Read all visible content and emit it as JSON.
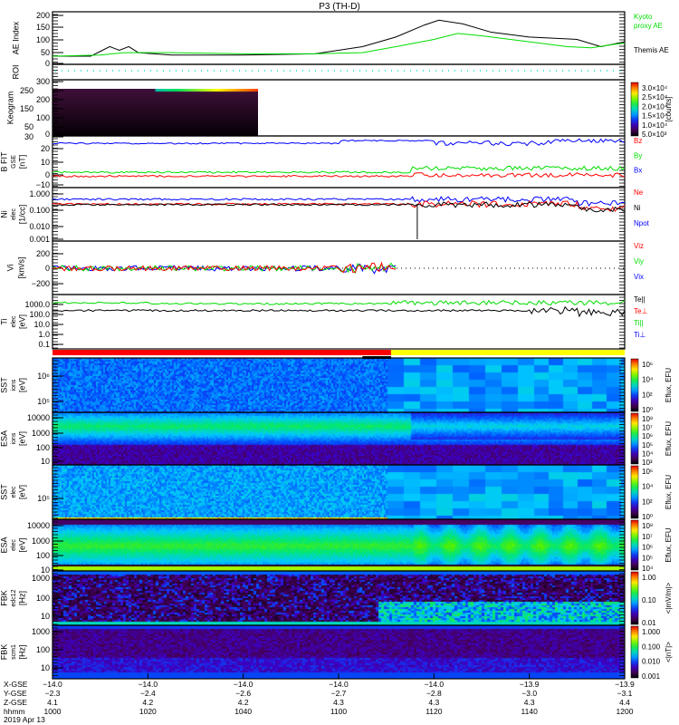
{
  "title": "P3 (TH-D)",
  "colors": {
    "red": "#ff0000",
    "green": "#00dd00",
    "blue": "#0000ff",
    "black": "#000000",
    "cyan": "#00e0c0",
    "yellow": "#ffff00"
  },
  "panels": [
    {
      "id": "ae",
      "label": [
        "AE Index"
      ],
      "ticks": [
        "200",
        "150",
        "100",
        "50",
        "0"
      ],
      "legend": [
        {
          "text": "Kyoto",
          "color": "#00dd00"
        },
        {
          "text": "proxy AE",
          "color": "#00dd00"
        },
        {
          "text": "Themis AE",
          "color": "#000000"
        }
      ]
    },
    {
      "id": "roi",
      "label": [
        "ROI"
      ],
      "ticks": [],
      "legend": []
    },
    {
      "id": "keogram",
      "label": [
        "Keogram"
      ],
      "ticks": [
        "300",
        "250",
        "200",
        "150",
        "100",
        "50",
        "0"
      ],
      "colorbar": [
        "3.0×10⁴",
        "2.5×10⁴",
        "2.0×10⁴",
        "1.5×10⁴",
        "1.0×10⁴",
        "5.0×10³"
      ],
      "cbar_unit": "[counts]"
    },
    {
      "id": "bfit",
      "label": [
        "B FIT",
        "GSE",
        "[nT]"
      ],
      "ticks": [
        "30",
        "20",
        "10",
        "0",
        "−10"
      ],
      "legend": [
        {
          "text": "Bz",
          "color": "#ff0000"
        },
        {
          "text": "By",
          "color": "#00dd00"
        },
        {
          "text": "Bx",
          "color": "#0000ff"
        }
      ]
    },
    {
      "id": "ni",
      "label": [
        "Ni",
        "elec",
        "[1/cc]"
      ],
      "ticks": [
        "1.000",
        "0.100",
        "0.010",
        "0.001"
      ],
      "legend": [
        {
          "text": "Ne",
          "color": "#ff0000"
        },
        {
          "text": "Ni",
          "color": "#000000"
        },
        {
          "text": "Npot",
          "color": "#0000ff"
        }
      ]
    },
    {
      "id": "vi",
      "label": [
        "Vi",
        "[km/s]"
      ],
      "ticks": [
        "200",
        "0",
        "−200"
      ],
      "legend": [
        {
          "text": "Viz",
          "color": "#ff0000"
        },
        {
          "text": "Viy",
          "color": "#00dd00"
        },
        {
          "text": "Vix",
          "color": "#0000ff"
        }
      ]
    },
    {
      "id": "ti",
      "label": [
        "Ti",
        "elec",
        "[eV]"
      ],
      "ticks": [
        "1000.0",
        "100.0",
        "10.0",
        "1.0",
        "0.1"
      ],
      "legend": [
        {
          "text": "Te||",
          "color": "#000000"
        },
        {
          "text": "Te⊥",
          "color": "#ff0000"
        },
        {
          "text": "Ti||",
          "color": "#00dd00"
        },
        {
          "text": "Ti⊥",
          "color": "#0000ff"
        }
      ]
    },
    {
      "id": "sst_i",
      "label": [
        "SST",
        "ions",
        "[eV]"
      ],
      "ticks": [
        "10⁶",
        "10⁵"
      ],
      "colorbar": [
        "10⁶",
        "10⁴",
        "10²",
        "10⁰"
      ],
      "cbar_unit": "Eflux, EFU"
    },
    {
      "id": "esa_i",
      "label": [
        "ESA",
        "ions",
        "[eV]"
      ],
      "ticks": [
        "10000",
        "1000",
        "100",
        "10"
      ],
      "colorbar": [
        "10⁸",
        "10⁷",
        "10⁶",
        "10⁵",
        "10⁴",
        "10³"
      ],
      "cbar_unit": "Eflux, EFU"
    },
    {
      "id": "sst_e",
      "label": [
        "SST",
        "elec",
        "[eV]"
      ],
      "ticks": [
        "10⁵"
      ],
      "colorbar": [
        "10⁶",
        "10⁴",
        "10²",
        "10⁰"
      ],
      "cbar_unit": "Eflux, EFU"
    },
    {
      "id": "esa_e",
      "label": [
        "ESA",
        "elec",
        "[eV]"
      ],
      "ticks": [
        "10000",
        "1000",
        "100",
        "10"
      ],
      "colorbar": [
        "10⁸",
        "10⁷",
        "10⁶",
        "10⁵",
        "10⁴"
      ],
      "cbar_unit": "Eflux, EFU"
    },
    {
      "id": "fbk_e",
      "label": [
        "FBK",
        "edc12",
        "[Hz]"
      ],
      "ticks": [
        "1000",
        "100",
        "10"
      ],
      "colorbar": [
        "1.00",
        "0.10",
        "0.01"
      ],
      "cbar_unit": "<|mV/m|>"
    },
    {
      "id": "fbk_b",
      "label": [
        "FBK",
        "scm1",
        "[Hz]"
      ],
      "ticks": [
        "1000",
        "100",
        "10"
      ],
      "colorbar": [
        "1.000",
        "0.100",
        "0.010",
        "0.001"
      ],
      "cbar_unit": "<|nT|>"
    }
  ],
  "xaxis": {
    "row_labels": [
      "X-GSE",
      "Y-GSE",
      "Z-GSE",
      "hhmm"
    ],
    "date": "2019 Apr 13",
    "columns": [
      [
        "−14.0",
        "−2.3",
        "4.1",
        "1000"
      ],
      [
        "−14.0",
        "−2.4",
        "4.2",
        "1020"
      ],
      [
        "−14.0",
        "−2.6",
        "4.2",
        "1040"
      ],
      [
        "−14.0",
        "−2.7",
        "4.3",
        "1100"
      ],
      [
        "−14.0",
        "−2.8",
        "4.3",
        "1120"
      ],
      [
        "−13.9",
        "−3.0",
        "4.3",
        "1140"
      ],
      [
        "−13.9",
        "−3.1",
        "4.4",
        "1200"
      ]
    ]
  },
  "chart_data": {
    "type": "line",
    "title": "P3 (TH-D)",
    "x_unit": "minutes after 10:00 UT",
    "xlim": [
      0,
      120
    ],
    "ae": {
      "ylim": [
        0,
        210
      ],
      "series": [
        {
          "name": "Themis AE",
          "x": [
            0,
            8,
            10,
            12,
            14,
            16,
            18,
            25,
            40,
            55,
            65,
            72,
            78,
            81,
            86,
            92,
            100,
            110,
            115,
            120
          ],
          "y": [
            30,
            30,
            50,
            70,
            55,
            70,
            45,
            35,
            35,
            40,
            70,
            110,
            160,
            180,
            165,
            130,
            110,
            100,
            70,
            90
          ]
        },
        {
          "name": "Kyoto proxy AE",
          "x": [
            0,
            10,
            15,
            25,
            40,
            55,
            65,
            72,
            80,
            85,
            90,
            100,
            108,
            113,
            118,
            120
          ],
          "y": [
            30,
            35,
            45,
            45,
            40,
            40,
            45,
            70,
            100,
            125,
            115,
            90,
            70,
            65,
            80,
            85
          ]
        }
      ]
    },
    "bfit": {
      "ylim": [
        -12,
        32
      ],
      "series": [
        {
          "name": "Bz",
          "level": -1
        },
        {
          "name": "By",
          "level": 2
        },
        {
          "name": "Bx",
          "level": 24
        }
      ]
    },
    "ni": {
      "ylim_log": [
        -3.2,
        0.2
      ],
      "series": [
        {
          "name": "Npot",
          "level": 0.4
        },
        {
          "name": "Ne",
          "level": 0.22
        },
        {
          "name": "Ni",
          "level": 0.2
        }
      ]
    },
    "ti": {
      "ylim_log": [
        -1.5,
        3.4
      ],
      "series": [
        {
          "name": "Ti||",
          "level": 1500
        },
        {
          "name": "Te||",
          "level": 250
        }
      ]
    },
    "mode_bar": {
      "slow_survey_end_min": 71
    }
  }
}
